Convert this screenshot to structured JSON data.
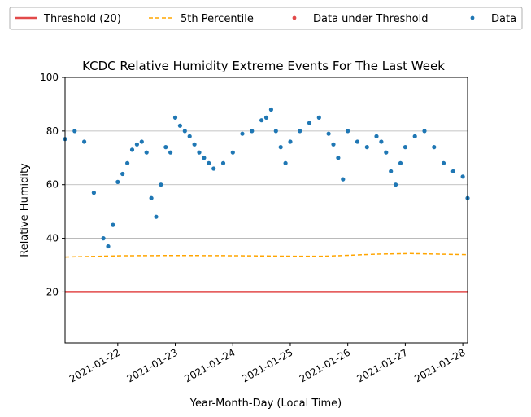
{
  "chart_data": {
    "type": "scatter",
    "title": "KCDC Relative Humidity Extreme Events For The Last Week",
    "xlabel": "Year-Month-Day (Local Time)",
    "ylabel": "Relative Humidity",
    "xlim": [
      "2021-01-21 02:00",
      "2021-01-28 02:00"
    ],
    "ylim": [
      1,
      100
    ],
    "x_ticks": [
      "2021-01-22",
      "2021-01-23",
      "2021-01-24",
      "2021-01-25",
      "2021-01-26",
      "2021-01-27",
      "2021-01-28"
    ],
    "y_ticks": [
      20,
      40,
      60,
      80,
      100
    ],
    "grid": "y",
    "legend_position": "top, outside",
    "legend": [
      {
        "label": "Threshold (20)",
        "kind": "line",
        "color": "#e24a4a"
      },
      {
        "label": "5th Percentile",
        "kind": "dashed",
        "color": "#ffa500"
      },
      {
        "label": "Data under Threshold",
        "kind": "marker",
        "color": "#e24a4a"
      },
      {
        "label": "Data",
        "kind": "marker",
        "color": "#1f77b4"
      }
    ],
    "threshold": {
      "name": "Threshold (20)",
      "value": 20,
      "color": "#e24a4a"
    },
    "percentile": {
      "name": "5th Percentile",
      "color": "#ffa500",
      "x": [
        "2021-01-21 02:00",
        "2021-01-22 02:00",
        "2021-01-23 02:00",
        "2021-01-24 02:00",
        "2021-01-25 02:00",
        "2021-01-25 14:00",
        "2021-01-26 02:00",
        "2021-01-26 12:00",
        "2021-01-27 02:00",
        "2021-01-28 02:00"
      ],
      "y": [
        33,
        33.5,
        33.6,
        33.5,
        33.3,
        33.3,
        33.7,
        34.1,
        34.3,
        33.9
      ]
    },
    "series": [
      {
        "name": "Data",
        "color": "#1f77b4",
        "x": [
          "2021-01-21 02:00",
          "2021-01-21 06:00",
          "2021-01-21 10:00",
          "2021-01-21 14:00",
          "2021-01-21 18:00",
          "2021-01-21 20:00",
          "2021-01-21 22:00",
          "2021-01-22 00:00",
          "2021-01-22 02:00",
          "2021-01-22 04:00",
          "2021-01-22 06:00",
          "2021-01-22 08:00",
          "2021-01-22 10:00",
          "2021-01-22 12:00",
          "2021-01-22 14:00",
          "2021-01-22 16:00",
          "2021-01-22 18:00",
          "2021-01-22 20:00",
          "2021-01-22 22:00",
          "2021-01-23 00:00",
          "2021-01-23 02:00",
          "2021-01-23 04:00",
          "2021-01-23 06:00",
          "2021-01-23 08:00",
          "2021-01-23 10:00",
          "2021-01-23 12:00",
          "2021-01-23 14:00",
          "2021-01-23 16:00",
          "2021-01-23 20:00",
          "2021-01-24 00:00",
          "2021-01-24 04:00",
          "2021-01-24 08:00",
          "2021-01-24 12:00",
          "2021-01-24 14:00",
          "2021-01-24 16:00",
          "2021-01-24 18:00",
          "2021-01-24 20:00",
          "2021-01-24 22:00",
          "2021-01-25 00:00",
          "2021-01-25 04:00",
          "2021-01-25 08:00",
          "2021-01-25 12:00",
          "2021-01-25 16:00",
          "2021-01-25 18:00",
          "2021-01-25 20:00",
          "2021-01-25 22:00",
          "2021-01-26 00:00",
          "2021-01-26 04:00",
          "2021-01-26 08:00",
          "2021-01-26 12:00",
          "2021-01-26 14:00",
          "2021-01-26 16:00",
          "2021-01-26 18:00",
          "2021-01-26 20:00",
          "2021-01-26 22:00",
          "2021-01-27 00:00",
          "2021-01-27 04:00",
          "2021-01-27 08:00",
          "2021-01-27 12:00",
          "2021-01-27 16:00",
          "2021-01-27 20:00",
          "2021-01-28 00:00",
          "2021-01-28 02:00"
        ],
        "y": [
          77,
          80,
          76,
          57,
          40,
          37,
          45,
          61,
          64,
          68,
          73,
          75,
          76,
          72,
          55,
          48,
          60,
          74,
          72,
          85,
          82,
          80,
          78,
          75,
          72,
          70,
          68,
          66,
          68,
          72,
          79,
          80,
          84,
          85,
          88,
          80,
          74,
          68,
          76,
          80,
          83,
          85,
          79,
          75,
          70,
          62,
          80,
          76,
          74,
          78,
          76,
          72,
          65,
          60,
          68,
          74,
          78,
          80,
          74,
          68,
          65,
          63,
          55
        ]
      },
      {
        "name": "Data under Threshold",
        "color": "#e24a4a",
        "x": [],
        "y": []
      }
    ]
  }
}
